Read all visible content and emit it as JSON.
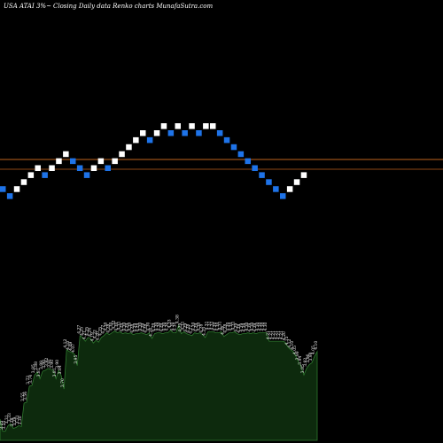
{
  "header": {
    "symbol": "USA ATAI 3%~",
    "description": "Closing Daily data  Renko  charts MunafaSutra.com"
  },
  "colors": {
    "background": "#000000",
    "up_brick": "#ffffff",
    "down_brick": "#1e73e8",
    "ref_line_1": "#c0641e",
    "ref_line_2": "#8c4614",
    "volume_fill": "#0d2a0d",
    "volume_stroke": "#2f7a2f",
    "text": "#ffffff"
  },
  "chart_data": [
    {
      "type": "renko",
      "title": "",
      "brick_directions": [
        "down",
        "down",
        "up",
        "up",
        "up",
        "up",
        "down",
        "up",
        "up",
        "up",
        "down",
        "down",
        "down",
        "up",
        "up",
        "down",
        "up",
        "up",
        "up",
        "up",
        "up",
        "down",
        "up",
        "up",
        "down",
        "up",
        "down",
        "up",
        "down",
        "up",
        "up",
        "down",
        "down",
        "down",
        "down",
        "down",
        "down",
        "down",
        "down",
        "down",
        "down",
        "up",
        "up",
        "up"
      ],
      "brick_levels": [
        2,
        1,
        2,
        3,
        4,
        5,
        4,
        5,
        6,
        7,
        6,
        5,
        4,
        5,
        6,
        5,
        6,
        7,
        8,
        9,
        10,
        9,
        10,
        11,
        10,
        11,
        10,
        11,
        10,
        11,
        11,
        10,
        9,
        8,
        7,
        6,
        5,
        4,
        3,
        2,
        1,
        2,
        3,
        4
      ]
    },
    {
      "type": "area",
      "title": "",
      "values": [
        3.38,
        3.25,
        3.25,
        3.31,
        3.33,
        3.28,
        3.29,
        3.31,
        3.3,
        3.55,
        3.56,
        3.73,
        3.74,
        3.85,
        3.88,
        3.81,
        3.89,
        3.9,
        3.92,
        3.91,
        3.9,
        3.81,
        3.9,
        3.84,
        3.7,
        4.12,
        4.1,
        4.09,
        4.07,
        3.95,
        4.27,
        4.25,
        4.21,
        4.25,
        4.24,
        4.19,
        4.22,
        4.2,
        4.25,
        4.27,
        4.3,
        4.28,
        4.3,
        4.32,
        4.3,
        4.31,
        4.29,
        4.3,
        4.29,
        4.3,
        4.28,
        4.29,
        4.29,
        4.3,
        4.29,
        4.28,
        4.3,
        4.24,
        4.29,
        4.3,
        4.3,
        4.29,
        4.3,
        4.3,
        4.33,
        4.3,
        4.3,
        4.38,
        4.29,
        4.31,
        4.29,
        4.28,
        4.27,
        4.3,
        4.29,
        4.3,
        4.28,
        4.25,
        4.31,
        4.31,
        4.31,
        4.3,
        4.3,
        4.31,
        4.26,
        4.28,
        4.3,
        4.3,
        4.31,
        4.29,
        4.28,
        4.29,
        4.29,
        4.3,
        4.29,
        4.3,
        4.29,
        4.3,
        4.3,
        4.3,
        4.3,
        4.21,
        4.21,
        4.21,
        4.21,
        4.21,
        4.21,
        4.2,
        4.15,
        4.12,
        4.1,
        4.05,
        3.99,
        3.94,
        3.85,
        3.92,
        3.96,
        3.98,
        4.05,
        4.1
      ],
      "labels": [
        "3.38",
        "3.25",
        "3.25",
        "3.31",
        "3.33",
        "3.28",
        "3.29",
        "3.31",
        "3.30",
        "3.55",
        "3.56",
        "3.73",
        "3.74",
        "3.85",
        "3.88",
        "3.81",
        "3.89",
        "3.90",
        "3.92",
        "3.91",
        "3.90",
        "3.81",
        "3.90",
        "3.84",
        "3.70",
        "4.12",
        "4.10",
        "4.09",
        "4.07",
        "3.95",
        "4.27",
        "4.25",
        "4.21",
        "4.25",
        "4.24",
        "4.19",
        "4.22",
        "4.20",
        "4.25",
        "4.27",
        "4.30",
        "4.28",
        "4.30",
        "4.32",
        "4.30",
        "4.31",
        "4.29",
        "4.30",
        "4.29",
        "4.30",
        "4.28",
        "4.29",
        "4.29",
        "4.30",
        "4.29",
        "4.28",
        "4.30",
        "4.24",
        "4.29",
        "4.30",
        "4.30",
        "4.29",
        "4.30",
        "4.30",
        "4.33",
        "4.30",
        "4.30",
        "4.38",
        "4.29",
        "4.31",
        "4.29",
        "4.28",
        "4.27",
        "4.30",
        "4.29",
        "4.30",
        "4.28",
        "4.25",
        "4.31",
        "4.31",
        "4.31",
        "4.30",
        "4.30",
        "4.31",
        "4.26",
        "4.28",
        "4.30",
        "4.30",
        "4.31",
        "4.29",
        "4.28",
        "4.29",
        "4.29",
        "4.30",
        "4.29",
        "4.30",
        "4.29",
        "4.30",
        "4.30",
        "4.30",
        "4.30",
        "4.21",
        "4.21",
        "4.21",
        "4.21",
        "4.21",
        "4.21",
        "4.20",
        "4.15",
        "4.12",
        "4.10",
        "4.05",
        "3.99",
        "3.94",
        "3.85",
        "3.92",
        "3.96",
        "3.98",
        "4.05",
        "4.10"
      ]
    }
  ]
}
